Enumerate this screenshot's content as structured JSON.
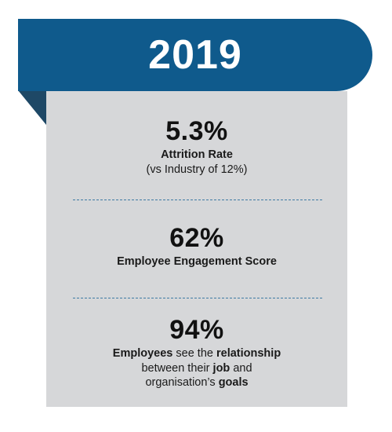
{
  "header": {
    "year": "2019",
    "banner_color": "#0f5a8c"
  },
  "stats": [
    {
      "value": "5.3%",
      "label_line1": "Attrition Rate",
      "label_line2": "(vs Industry of 12%)"
    },
    {
      "value": "62%",
      "label_line1": "Employee Engagement Score"
    },
    {
      "value": "94%",
      "label_parts": {
        "p1": "Employees",
        "p2": " see the ",
        "p3": "relationship",
        "p4": "between their ",
        "p5": "job",
        "p6": " and",
        "p7": "organisation’s ",
        "p8": "goals"
      }
    }
  ],
  "card_color": "#d6d7d9"
}
